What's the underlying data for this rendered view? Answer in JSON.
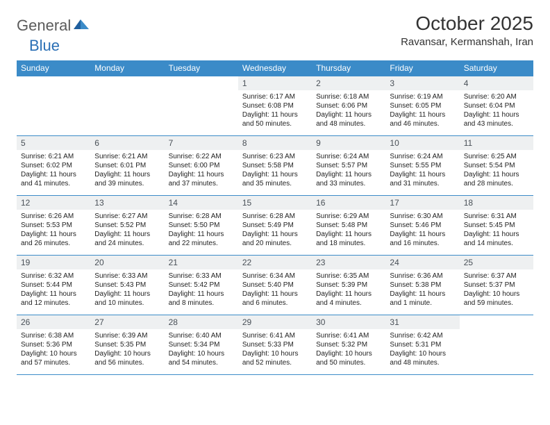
{
  "logo": {
    "general": "General",
    "blue": "Blue"
  },
  "title": "October 2025",
  "location": "Ravansar, Kermanshah, Iran",
  "colors": {
    "headerBg": "#3b8bc8",
    "headerText": "#ffffff",
    "dayNumBg": "#eef0f1",
    "border": "#3b8bc8",
    "logoGray": "#5b5b5b",
    "logoBlue": "#2a6fb5"
  },
  "weekdays": [
    "Sunday",
    "Monday",
    "Tuesday",
    "Wednesday",
    "Thursday",
    "Friday",
    "Saturday"
  ],
  "weeks": [
    [
      null,
      null,
      null,
      {
        "n": "1",
        "sunrise": "6:17 AM",
        "sunset": "6:08 PM",
        "daylight": "11 hours and 50 minutes."
      },
      {
        "n": "2",
        "sunrise": "6:18 AM",
        "sunset": "6:06 PM",
        "daylight": "11 hours and 48 minutes."
      },
      {
        "n": "3",
        "sunrise": "6:19 AM",
        "sunset": "6:05 PM",
        "daylight": "11 hours and 46 minutes."
      },
      {
        "n": "4",
        "sunrise": "6:20 AM",
        "sunset": "6:04 PM",
        "daylight": "11 hours and 43 minutes."
      }
    ],
    [
      {
        "n": "5",
        "sunrise": "6:21 AM",
        "sunset": "6:02 PM",
        "daylight": "11 hours and 41 minutes."
      },
      {
        "n": "6",
        "sunrise": "6:21 AM",
        "sunset": "6:01 PM",
        "daylight": "11 hours and 39 minutes."
      },
      {
        "n": "7",
        "sunrise": "6:22 AM",
        "sunset": "6:00 PM",
        "daylight": "11 hours and 37 minutes."
      },
      {
        "n": "8",
        "sunrise": "6:23 AM",
        "sunset": "5:58 PM",
        "daylight": "11 hours and 35 minutes."
      },
      {
        "n": "9",
        "sunrise": "6:24 AM",
        "sunset": "5:57 PM",
        "daylight": "11 hours and 33 minutes."
      },
      {
        "n": "10",
        "sunrise": "6:24 AM",
        "sunset": "5:55 PM",
        "daylight": "11 hours and 31 minutes."
      },
      {
        "n": "11",
        "sunrise": "6:25 AM",
        "sunset": "5:54 PM",
        "daylight": "11 hours and 28 minutes."
      }
    ],
    [
      {
        "n": "12",
        "sunrise": "6:26 AM",
        "sunset": "5:53 PM",
        "daylight": "11 hours and 26 minutes."
      },
      {
        "n": "13",
        "sunrise": "6:27 AM",
        "sunset": "5:52 PM",
        "daylight": "11 hours and 24 minutes."
      },
      {
        "n": "14",
        "sunrise": "6:28 AM",
        "sunset": "5:50 PM",
        "daylight": "11 hours and 22 minutes."
      },
      {
        "n": "15",
        "sunrise": "6:28 AM",
        "sunset": "5:49 PM",
        "daylight": "11 hours and 20 minutes."
      },
      {
        "n": "16",
        "sunrise": "6:29 AM",
        "sunset": "5:48 PM",
        "daylight": "11 hours and 18 minutes."
      },
      {
        "n": "17",
        "sunrise": "6:30 AM",
        "sunset": "5:46 PM",
        "daylight": "11 hours and 16 minutes."
      },
      {
        "n": "18",
        "sunrise": "6:31 AM",
        "sunset": "5:45 PM",
        "daylight": "11 hours and 14 minutes."
      }
    ],
    [
      {
        "n": "19",
        "sunrise": "6:32 AM",
        "sunset": "5:44 PM",
        "daylight": "11 hours and 12 minutes."
      },
      {
        "n": "20",
        "sunrise": "6:33 AM",
        "sunset": "5:43 PM",
        "daylight": "11 hours and 10 minutes."
      },
      {
        "n": "21",
        "sunrise": "6:33 AM",
        "sunset": "5:42 PM",
        "daylight": "11 hours and 8 minutes."
      },
      {
        "n": "22",
        "sunrise": "6:34 AM",
        "sunset": "5:40 PM",
        "daylight": "11 hours and 6 minutes."
      },
      {
        "n": "23",
        "sunrise": "6:35 AM",
        "sunset": "5:39 PM",
        "daylight": "11 hours and 4 minutes."
      },
      {
        "n": "24",
        "sunrise": "6:36 AM",
        "sunset": "5:38 PM",
        "daylight": "11 hours and 1 minute."
      },
      {
        "n": "25",
        "sunrise": "6:37 AM",
        "sunset": "5:37 PM",
        "daylight": "10 hours and 59 minutes."
      }
    ],
    [
      {
        "n": "26",
        "sunrise": "6:38 AM",
        "sunset": "5:36 PM",
        "daylight": "10 hours and 57 minutes."
      },
      {
        "n": "27",
        "sunrise": "6:39 AM",
        "sunset": "5:35 PM",
        "daylight": "10 hours and 56 minutes."
      },
      {
        "n": "28",
        "sunrise": "6:40 AM",
        "sunset": "5:34 PM",
        "daylight": "10 hours and 54 minutes."
      },
      {
        "n": "29",
        "sunrise": "6:41 AM",
        "sunset": "5:33 PM",
        "daylight": "10 hours and 52 minutes."
      },
      {
        "n": "30",
        "sunrise": "6:41 AM",
        "sunset": "5:32 PM",
        "daylight": "10 hours and 50 minutes."
      },
      {
        "n": "31",
        "sunrise": "6:42 AM",
        "sunset": "5:31 PM",
        "daylight": "10 hours and 48 minutes."
      },
      null
    ]
  ],
  "labels": {
    "sunrise": "Sunrise:",
    "sunset": "Sunset:",
    "daylight": "Daylight:"
  }
}
